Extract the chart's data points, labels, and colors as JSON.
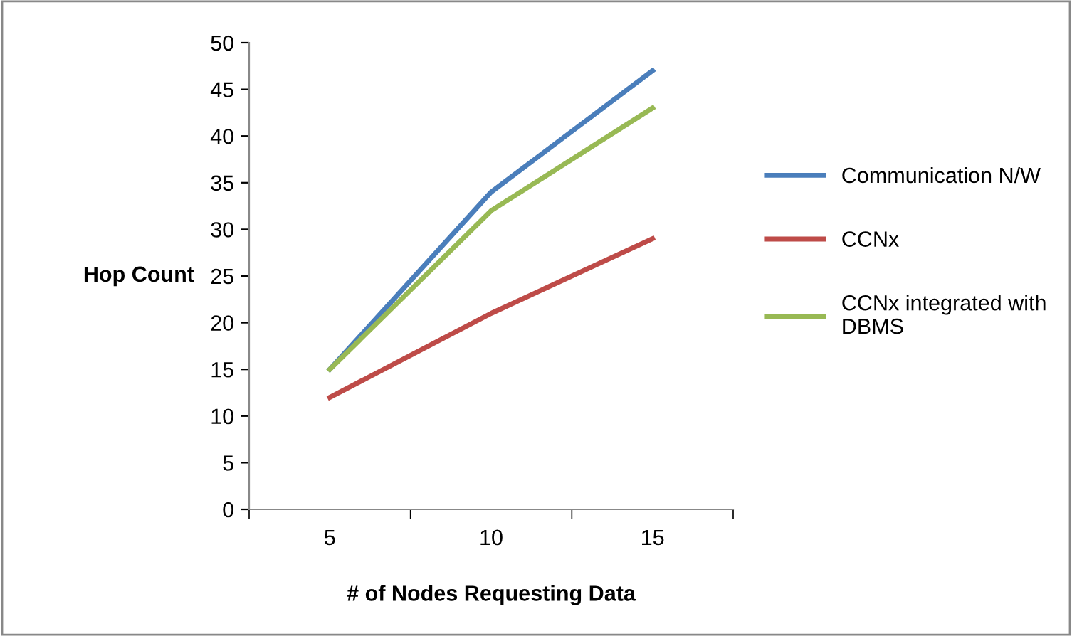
{
  "chart_data": {
    "type": "line",
    "xlabel": "# of Nodes Requesting Data",
    "ylabel": "Hop Count",
    "categories": [
      "5",
      "10",
      "15"
    ],
    "series": [
      {
        "name": "Communication N/W",
        "color": "#4a7ebb",
        "values": [
          15,
          34,
          47
        ]
      },
      {
        "name": "CCNx",
        "color": "#be4b48",
        "values": [
          12,
          21,
          29
        ]
      },
      {
        "name": "CCNx integrated with\nDBMS",
        "color": "#98b954",
        "values": [
          15,
          32,
          43
        ]
      }
    ],
    "ylim": [
      0,
      50
    ],
    "yticks": [
      0,
      5,
      10,
      15,
      20,
      25,
      30,
      35,
      40,
      45,
      50
    ],
    "grid": false,
    "legend": "right",
    "marker": "none",
    "line_style": "solid"
  }
}
